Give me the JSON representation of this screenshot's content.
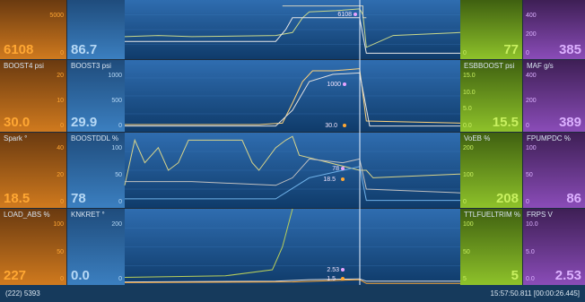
{
  "colors": {
    "orange_text": "#ffa733",
    "blue_text": "#b6d8f5",
    "green_text": "#c8f060",
    "purple_text": "#dcb0ff",
    "orange_panel": "#8a4a12",
    "blue_panel": "#2d6aa8",
    "green_panel": "#6e9a1e",
    "purple_panel": "#6a3a8a"
  },
  "rows": [
    {
      "left_label": "",
      "left2_label": "",
      "right_label": "",
      "right2_label": "",
      "left_value": "6108",
      "left2_value": "86.7",
      "right_value": "77",
      "right2_value": "385",
      "left_ticks": [
        "5000",
        "0"
      ],
      "left2_ticks": [],
      "right_ticks": [
        "0"
      ],
      "right2_ticks": [
        "400",
        "200",
        "0"
      ],
      "marker_values": [
        "6108"
      ]
    },
    {
      "left_label": "BOOST4 psi",
      "left2_label": "BOOST3 psi",
      "right_label": "ESBBOOST psi",
      "right2_label": "MAF g/s",
      "left_value": "30.0",
      "left2_value": "29.9",
      "right_value": "15.5",
      "right2_value": "389",
      "left_ticks": [
        "20",
        "10",
        "0"
      ],
      "left2_ticks": [
        "1000",
        "500",
        "0"
      ],
      "right_ticks": [
        "15.0",
        "10.0",
        "5.0",
        "0.0"
      ],
      "right2_ticks": [
        "400",
        "200",
        "0"
      ],
      "marker_values": [
        "1000",
        "30.0"
      ]
    },
    {
      "left_label": "Spark °",
      "left2_label": "BOOSTDDL %",
      "right_label": "VoEB %",
      "right2_label": "FPUMPDC %",
      "left_value": "18.5",
      "left2_value": "78",
      "right_value": "208",
      "right2_value": "86",
      "left_ticks": [
        "40",
        "20",
        "0"
      ],
      "left2_ticks": [
        "100",
        "50",
        "0"
      ],
      "right_ticks": [
        "200",
        "100",
        "0"
      ],
      "right2_ticks": [
        "100",
        "50",
        "0"
      ],
      "marker_values": [
        "78",
        "18.5"
      ]
    },
    {
      "left_label": "LOAD_ABS %",
      "left2_label": "KNKRET °",
      "right_label": "TTLFUELTRIM %",
      "right2_label": "FRPS V",
      "left_value": "227",
      "left2_value": "0.0",
      "right_value": "5",
      "right2_value": "2.53",
      "left_ticks": [
        "100",
        "50",
        "0"
      ],
      "left2_ticks": [
        "200",
        "0"
      ],
      "right_ticks": [
        "100",
        "50",
        "5"
      ],
      "right2_ticks": [
        "10.0",
        "5.0",
        "0.0"
      ],
      "marker_values": [
        "2.53",
        "1.5"
      ]
    }
  ],
  "x_axis": {
    "ticks": [
      "5250",
      "5300",
      "5350",
      "5400",
      "5450"
    ]
  },
  "status": {
    "left": "(222) 5393",
    "right": "15:57:50.811 [00:00:26.445]"
  }
}
